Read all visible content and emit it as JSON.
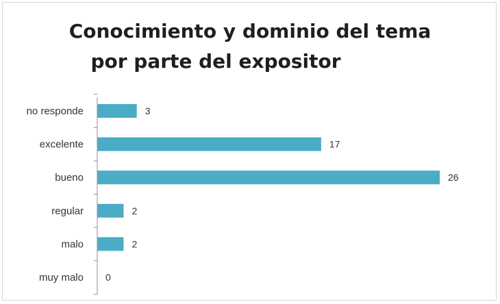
{
  "chart_data": {
    "type": "bar",
    "orientation": "horizontal",
    "title": [
      "Conocimiento y dominio del tema",
      "por parte del expositor"
    ],
    "categories": [
      "no responde",
      "excelente",
      "bueno",
      "regular",
      "malo",
      "muy malo"
    ],
    "values": [
      3,
      17,
      26,
      2,
      2,
      0
    ],
    "xlabel": "",
    "ylabel": "",
    "xlim": [
      0,
      26
    ],
    "grid": false,
    "legend": "none",
    "bar_color": "#4bacc6",
    "axis_color": "#8c8c8c"
  }
}
